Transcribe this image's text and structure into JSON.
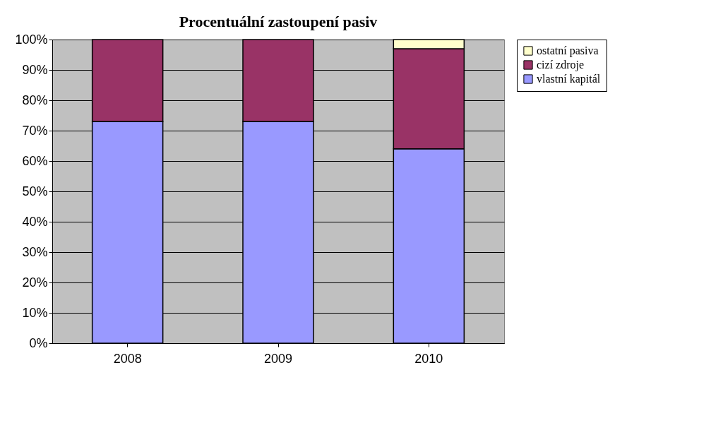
{
  "chart_data": {
    "type": "bar",
    "title": "Procentuální zastoupení pasiv",
    "stacked": true,
    "categories": [
      "2008",
      "2009",
      "2010"
    ],
    "series": [
      {
        "name": "vlastní kapitál",
        "color": "#9999ff",
        "values": [
          73,
          73,
          64
        ]
      },
      {
        "name": "cizí zdroje",
        "color": "#993366",
        "values": [
          27,
          27,
          33
        ]
      },
      {
        "name": "ostatní pasiva",
        "color": "#ffffcc",
        "values": [
          null,
          null,
          3
        ]
      }
    ],
    "ylim": [
      0,
      100
    ],
    "yticks": [
      {
        "value": 0,
        "label": "0%"
      },
      {
        "value": 10,
        "label": "10%"
      },
      {
        "value": 20,
        "label": "20%"
      },
      {
        "value": 30,
        "label": "30%"
      },
      {
        "value": 40,
        "label": "40%"
      },
      {
        "value": 50,
        "label": "50%"
      },
      {
        "value": 60,
        "label": "60%"
      },
      {
        "value": 70,
        "label": "70%"
      },
      {
        "value": 80,
        "label": "80%"
      },
      {
        "value": 90,
        "label": "90%"
      },
      {
        "value": 100,
        "label": "100%"
      }
    ],
    "grid": "y",
    "legend": "right"
  }
}
